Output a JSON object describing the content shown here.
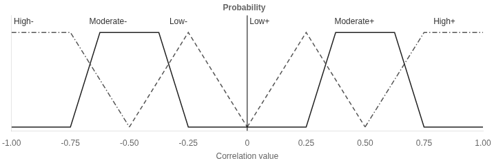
{
  "chart_data": {
    "type": "line",
    "title": "Probability",
    "xlabel": "Correlation value",
    "xlim": [
      -1.0,
      1.0
    ],
    "ylim": [
      -0.04,
      1.18
    ],
    "xticks": [
      {
        "value": -1.0,
        "label": "-1.00"
      },
      -0.75,
      {
        "value": -0.5,
        "label": "-0.50"
      },
      -0.25,
      0,
      0.25,
      {
        "value": 0.5,
        "label": "0.50"
      },
      0.75,
      {
        "value": 1.0,
        "label": "1.00"
      }
    ],
    "tick_labels": "x",
    "grid": false,
    "series": [
      {
        "name": "High-",
        "line_style": "dashdot",
        "color": "#555555",
        "x": [
          -1.0,
          -0.75,
          -0.5
        ],
        "values": [
          1,
          1,
          0
        ]
      },
      {
        "name": "Moderate-",
        "line_style": "solid",
        "color": "#222222",
        "x": [
          -1.0,
          -0.75,
          -0.625,
          -0.375,
          -0.25,
          0.0
        ],
        "values": [
          0,
          0,
          1,
          1,
          0,
          0
        ]
      },
      {
        "name": "Low-",
        "line_style": "dashed",
        "color": "#555555",
        "x": [
          -0.5,
          -0.25,
          0.0
        ],
        "values": [
          0,
          1,
          0
        ]
      },
      {
        "name": "Low+",
        "line_style": "dashed",
        "color": "#555555",
        "x": [
          0.0,
          0.25,
          0.5
        ],
        "values": [
          0,
          1,
          0
        ]
      },
      {
        "name": "Moderate+",
        "line_style": "solid",
        "color": "#222222",
        "x": [
          0.0,
          0.25,
          0.375,
          0.625,
          0.75,
          1.0
        ],
        "values": [
          0,
          0,
          1,
          1,
          0,
          0
        ]
      },
      {
        "name": "High+",
        "line_style": "dashdot",
        "color": "#555555",
        "x": [
          0.5,
          0.75,
          1.0
        ],
        "values": [
          0,
          1,
          1
        ]
      }
    ],
    "annotations": [
      {
        "text": "High-",
        "x": -0.99,
        "y": 1.07
      },
      {
        "text": "Moderate-",
        "x": -0.67,
        "y": 1.07
      },
      {
        "text": "Low-",
        "x": -0.33,
        "y": 1.07
      },
      {
        "text": "Low+",
        "x": 0.01,
        "y": 1.07
      },
      {
        "text": "Moderate+",
        "x": 0.37,
        "y": 1.07
      },
      {
        "text": "High+",
        "x": 0.79,
        "y": 1.07
      }
    ],
    "vline": {
      "x": 0,
      "color": "#000000"
    }
  }
}
